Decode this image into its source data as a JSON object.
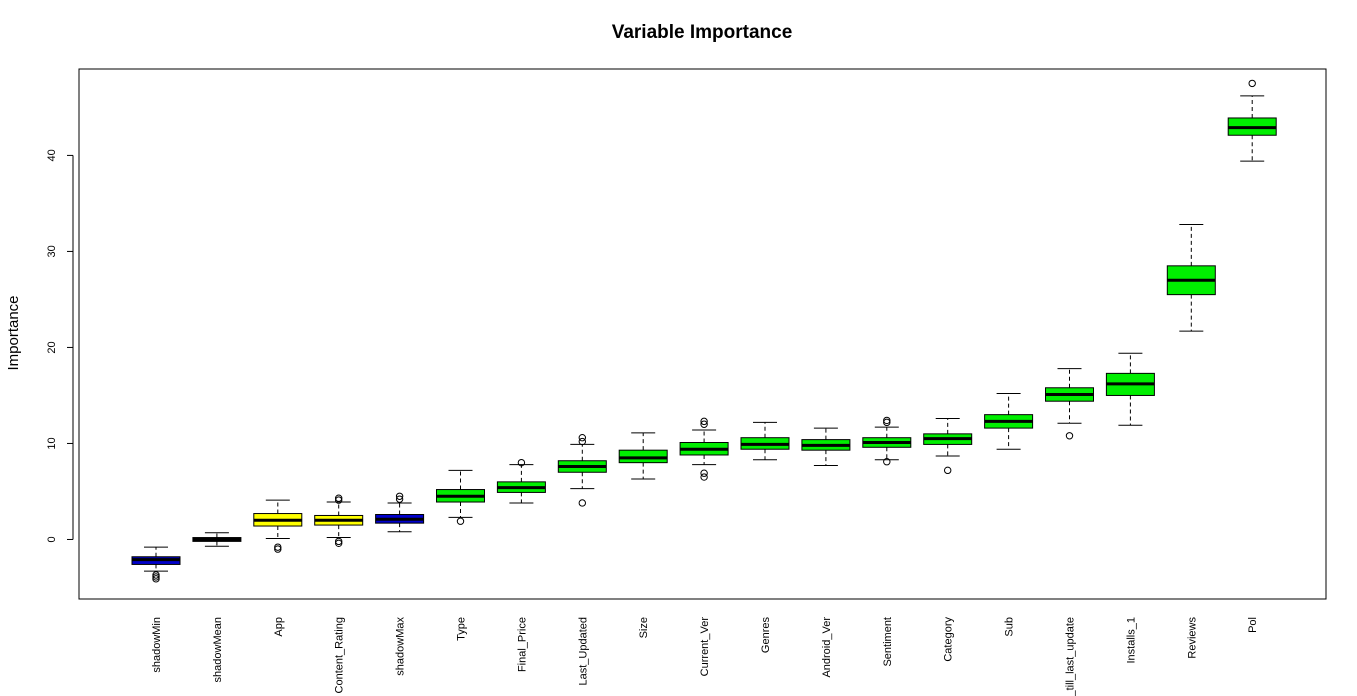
{
  "chart_data": {
    "type": "boxplot",
    "title": "Variable Importance",
    "xlabel": "",
    "ylabel": "Importance",
    "ylim": [
      -6.2,
      49.0
    ],
    "yticks": [
      0,
      10,
      20,
      30,
      40
    ],
    "grid": false,
    "legend": "none",
    "colors": {
      "shadow": "#0000cc",
      "tentative": "#ffff00",
      "confirmed": "#00ee00",
      "shadowMean": "#000000"
    },
    "categories": [
      "shadowMin",
      "shadowMean",
      "App",
      "Content_Rating",
      "shadowMax",
      "Type",
      "Final_Price",
      "Last_Updated",
      "Size",
      "Current_Ver",
      "Genres",
      "Android_Ver",
      "Sentiment",
      "Category",
      "Sub",
      "_till_last_update",
      "Installs_1",
      "Reviews",
      "Pol"
    ],
    "boxes": [
      {
        "label": "shadowMin",
        "color": "#0000cc",
        "min": -3.3,
        "q1": -2.6,
        "median": -2.1,
        "q3": -1.8,
        "max": -0.8,
        "outliers": [
          -3.7,
          -3.9,
          -4.1
        ]
      },
      {
        "label": "shadowMean",
        "color": "#000000",
        "min": -0.7,
        "q1": -0.2,
        "median": 0.0,
        "q3": 0.2,
        "max": 0.7,
        "outliers": []
      },
      {
        "label": "App",
        "color": "#ffff00",
        "min": 0.1,
        "q1": 1.4,
        "median": 2.0,
        "q3": 2.7,
        "max": 4.1,
        "outliers": [
          -0.8,
          -1.0
        ]
      },
      {
        "label": "Content_Rating",
        "color": "#ffff00",
        "min": 0.2,
        "q1": 1.5,
        "median": 2.0,
        "q3": 2.5,
        "max": 3.9,
        "outliers": [
          4.1,
          4.3,
          -0.2,
          -0.4
        ]
      },
      {
        "label": "shadowMax",
        "color": "#0000cc",
        "min": 0.8,
        "q1": 1.7,
        "median": 2.1,
        "q3": 2.6,
        "max": 3.8,
        "outliers": [
          4.2,
          4.5
        ]
      },
      {
        "label": "Type",
        "color": "#00ee00",
        "min": 2.3,
        "q1": 3.9,
        "median": 4.5,
        "q3": 5.2,
        "max": 7.2,
        "outliers": [
          1.9
        ]
      },
      {
        "label": "Final_Price",
        "color": "#00ee00",
        "min": 3.8,
        "q1": 4.9,
        "median": 5.4,
        "q3": 6.0,
        "max": 7.8,
        "outliers": [
          8.0
        ]
      },
      {
        "label": "Last_Updated",
        "color": "#00ee00",
        "min": 5.3,
        "q1": 7.0,
        "median": 7.6,
        "q3": 8.2,
        "max": 9.9,
        "outliers": [
          10.2,
          10.6,
          3.8
        ]
      },
      {
        "label": "Size",
        "color": "#00ee00",
        "min": 6.3,
        "q1": 8.0,
        "median": 8.5,
        "q3": 9.3,
        "max": 11.1,
        "outliers": []
      },
      {
        "label": "Current_Ver",
        "color": "#00ee00",
        "min": 7.8,
        "q1": 8.8,
        "median": 9.4,
        "q3": 10.1,
        "max": 11.4,
        "outliers": [
          12.0,
          12.3,
          6.9,
          6.5
        ]
      },
      {
        "label": "Genres",
        "color": "#00ee00",
        "min": 8.3,
        "q1": 9.4,
        "median": 9.9,
        "q3": 10.6,
        "max": 12.2,
        "outliers": []
      },
      {
        "label": "Android_Ver",
        "color": "#00ee00",
        "min": 7.7,
        "q1": 9.3,
        "median": 9.8,
        "q3": 10.4,
        "max": 11.6,
        "outliers": []
      },
      {
        "label": "Sentiment",
        "color": "#00ee00",
        "min": 8.3,
        "q1": 9.6,
        "median": 10.1,
        "q3": 10.6,
        "max": 11.7,
        "outliers": [
          12.2,
          12.4,
          8.1
        ]
      },
      {
        "label": "Category",
        "color": "#00ee00",
        "min": 8.7,
        "q1": 9.9,
        "median": 10.5,
        "q3": 11.0,
        "max": 12.6,
        "outliers": [
          7.2
        ]
      },
      {
        "label": "Sub",
        "color": "#00ee00",
        "min": 9.4,
        "q1": 11.6,
        "median": 12.3,
        "q3": 13.0,
        "max": 15.2,
        "outliers": []
      },
      {
        "label": "_till_last_update",
        "color": "#00ee00",
        "min": 12.1,
        "q1": 14.4,
        "median": 15.1,
        "q3": 15.8,
        "max": 17.8,
        "outliers": [
          10.8
        ]
      },
      {
        "label": "Installs_1",
        "color": "#00ee00",
        "min": 11.9,
        "q1": 15.0,
        "median": 16.2,
        "q3": 17.3,
        "max": 19.4,
        "outliers": []
      },
      {
        "label": "Reviews",
        "color": "#00ee00",
        "min": 21.7,
        "q1": 25.5,
        "median": 27.0,
        "q3": 28.5,
        "max": 32.8,
        "outliers": []
      },
      {
        "label": "Pol",
        "color": "#00ee00",
        "min": 39.4,
        "q1": 42.1,
        "median": 42.9,
        "q3": 43.9,
        "max": 46.2,
        "outliers": [
          47.5
        ]
      }
    ]
  }
}
